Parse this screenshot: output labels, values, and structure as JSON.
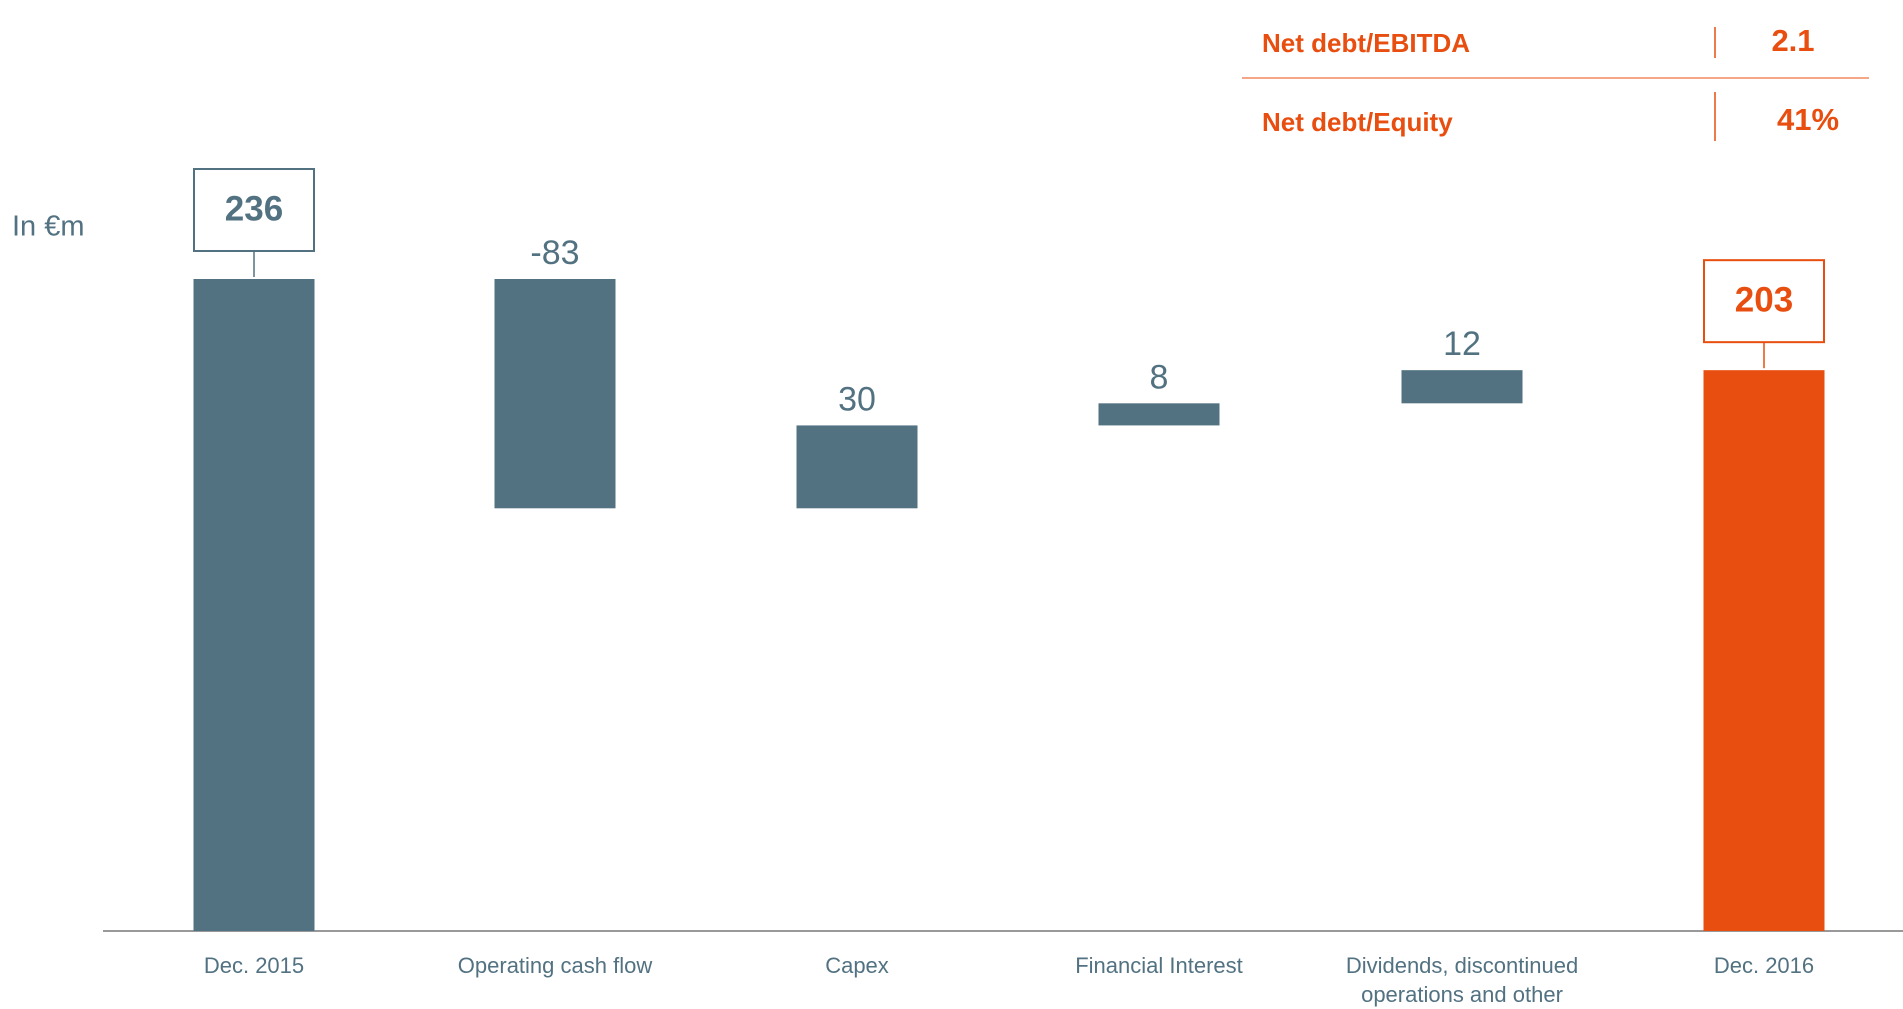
{
  "chart_data": {
    "type": "waterfall",
    "unit_label": "In €m",
    "categories": [
      "Dec. 2015",
      "Operating cash flow",
      "Capex",
      "Financial Interest",
      "Dividends, discontinued operations and other",
      "Dec. 2016"
    ],
    "values": [
      236,
      -83,
      30,
      8,
      12,
      203
    ],
    "colors": [
      "#527282",
      "#527282",
      "#527282",
      "#527282",
      "#527282",
      "#e84e0f"
    ]
  },
  "metrics": [
    {
      "label": "Net debt/EBITDA",
      "value": "2.1"
    },
    {
      "label": "Net debt/Equity",
      "value": "41%"
    }
  ]
}
